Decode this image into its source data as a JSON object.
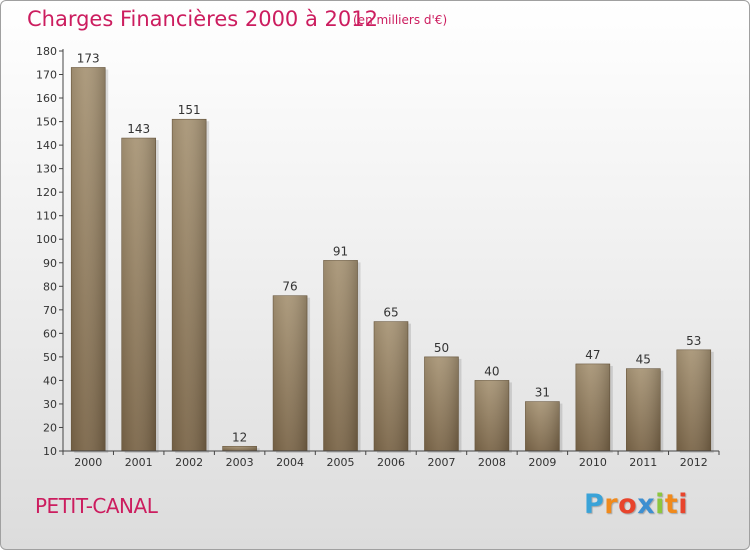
{
  "header": {
    "title": "Charges Financières 2000 à 2012",
    "subtitle": "(en milliers d'€)"
  },
  "footer": {
    "commune": "PETIT-CANAL",
    "brand": "Proxiti",
    "brand_letters": [
      "P",
      "r",
      "o",
      "x",
      "i",
      "t",
      "i"
    ],
    "brand_colors": [
      "#3aa3d8",
      "#f08a1c",
      "#e8442c",
      "#3d8fd1",
      "#8cc63f",
      "#f08a1c",
      "#e8442c"
    ]
  },
  "chart_data": {
    "type": "bar",
    "title": "Charges Financières 2000 à 2012",
    "subtitle": "(en milliers d'€)",
    "xlabel": "",
    "ylabel": "",
    "categories": [
      "2000",
      "2001",
      "2002",
      "2003",
      "2004",
      "2005",
      "2006",
      "2007",
      "2008",
      "2009",
      "2010",
      "2011",
      "2012"
    ],
    "values": [
      173,
      143,
      151,
      12,
      76,
      91,
      65,
      50,
      40,
      31,
      47,
      45,
      53
    ],
    "ylim": [
      10,
      180
    ],
    "yticks": [
      10,
      20,
      30,
      40,
      50,
      60,
      70,
      80,
      90,
      100,
      110,
      120,
      130,
      140,
      150,
      160,
      170,
      180
    ],
    "grid": false,
    "legend": "none",
    "bar_color_top": "#a89576",
    "bar_color_bottom": "#7a6548",
    "axis_color": "#444444"
  }
}
